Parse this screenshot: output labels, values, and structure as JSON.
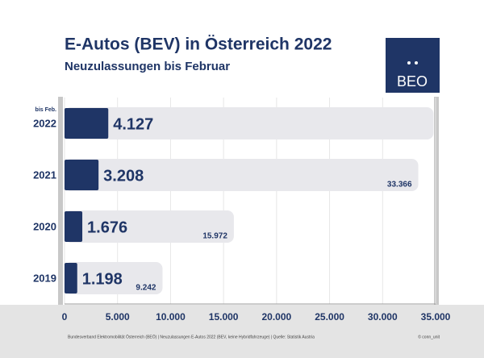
{
  "chart_data": {
    "type": "bar",
    "orientation": "horizontal",
    "title": "E-Autos (BEV) in Österreich 2022",
    "subtitle": "Neuzulassungen bis Februar",
    "logo": "BEO",
    "category_note": "bis Feb.",
    "categories": [
      "2022",
      "2021",
      "2020",
      "2019"
    ],
    "series": [
      {
        "color": "#e8e8ec",
        "values": [
          34800,
          33366,
          15972,
          9242
        ],
        "value_labels": [
          null,
          "33.366",
          "15.972",
          "9.242"
        ]
      },
      {
        "color": "#1f3566",
        "values": [
          4127,
          3208,
          1676,
          1198
        ],
        "value_labels": [
          "4.127",
          "3.208",
          "1.676",
          "1.198"
        ]
      }
    ],
    "xlim": [
      0,
      35000
    ],
    "xticks": [
      0,
      {
        "value": 5000,
        "label": "5.000"
      },
      {
        "value": 10000,
        "label": "10.000"
      },
      {
        "value": 15000,
        "label": "15.000"
      },
      {
        "value": 20000,
        "label": "20.000"
      },
      {
        "value": 25000,
        "label": "25.000"
      },
      {
        "value": 30000,
        "label": "30.000"
      },
      {
        "value": 35000,
        "label": "35.000"
      }
    ],
    "grid": true,
    "source": "Bundesverband Elektromobilität Österreich (BEÖ) | Neuzulassungen E-Autos 2022 (BEV, keine Hybridfahrzeuge) | Quelle: Statistik Austria",
    "credit": "© conn_unit"
  }
}
